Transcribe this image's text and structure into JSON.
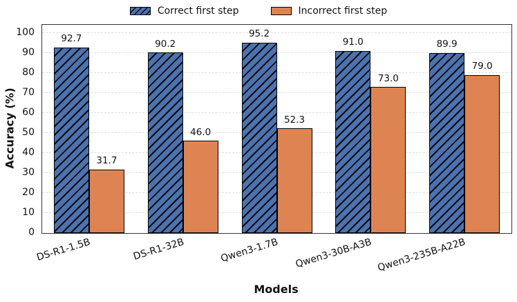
{
  "chart_data": {
    "type": "bar",
    "title": "",
    "categories": [
      "DS-R1-1.5B",
      "DS-R1-32B",
      "Qwen3-1.7B",
      "Qwen3-30B-A3B",
      "Qwen3-235B-A22B"
    ],
    "series": [
      {
        "name": "Correct first step",
        "color": "#4C72B0",
        "hatch": "/",
        "values": [
          92.7,
          90.2,
          95.2,
          91.0,
          89.9
        ]
      },
      {
        "name": "Incorrect first step",
        "color": "#DD8452",
        "hatch": "",
        "values": [
          31.7,
          46.0,
          52.3,
          73.0,
          79.0
        ]
      }
    ],
    "bar_value_labels": [
      "92.7",
      "90.2",
      "95.2",
      "91.0",
      "89.9",
      "31.7",
      "46.0",
      "52.3",
      "73.0",
      "79.0"
    ],
    "xlabel": "Models",
    "ylabel": "Accuracy (%)",
    "ylim": [
      0,
      104
    ],
    "yticks": [
      0,
      10,
      20,
      30,
      40,
      50,
      60,
      70,
      80,
      90,
      100
    ],
    "grid": "horizontal-dashed",
    "legend_position": "top-center",
    "colors": {
      "hatch_line": "#0a0a0a",
      "bar_edge": "#000000",
      "grid_line": "#dcdcdc",
      "spine": "#333333",
      "text": "#111111",
      "background": "#ffffff"
    }
  }
}
